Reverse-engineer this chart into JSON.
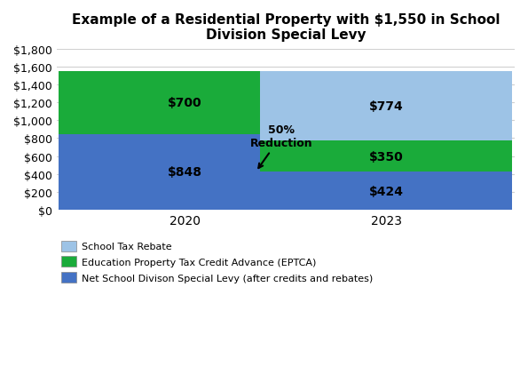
{
  "title": "Example of a Residential Property with $1,550 in School\nDivision Special Levy",
  "years": [
    "2020",
    "2023"
  ],
  "net_levy": [
    848,
    424
  ],
  "eptca": [
    700,
    350
  ],
  "rebate": [
    0,
    774
  ],
  "net_levy_color": "#4472c4",
  "eptca_color": "#1aab3a",
  "rebate_color": "#9dc3e6",
  "bar_width": 0.55,
  "bar_positions": [
    0.28,
    0.72
  ],
  "xlim": [
    0,
    1
  ],
  "ylim": [
    0,
    1800
  ],
  "yticks": [
    0,
    200,
    400,
    600,
    800,
    1000,
    1200,
    1400,
    1600,
    1800
  ],
  "ytick_labels": [
    "$0",
    "$200",
    "$400",
    "$600",
    "$800",
    "$1,000",
    "$1,200",
    "$1,400",
    "$1,600",
    "$1,800"
  ],
  "annotation_text": "50%\nReduction",
  "legend_labels": [
    "School Tax Rebate",
    "Education Property Tax Credit Advance (EPTCA)",
    "Net School Divison Special Levy (after credits and rebates)"
  ],
  "label_color_net": "black",
  "label_color_eptca": "black",
  "label_color_rebate": "black",
  "title_fontsize": 11,
  "bar_label_fontsize": 10,
  "tick_fontsize": 9,
  "xtick_fontsize": 10,
  "legend_fontsize": 8
}
